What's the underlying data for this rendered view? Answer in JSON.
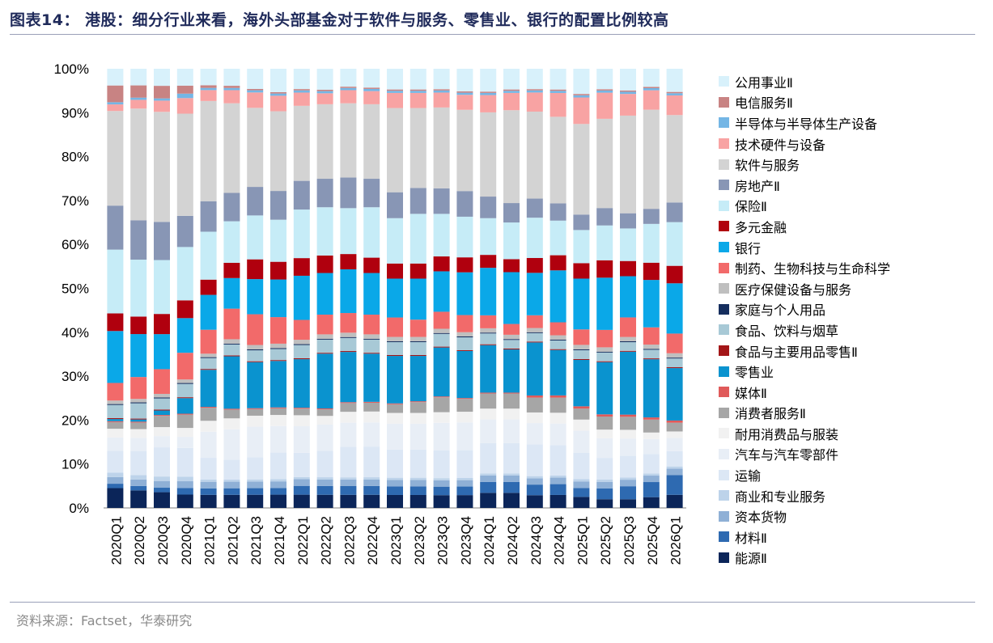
{
  "title": "图表14：  港股：细分行业来看，海外头部基金对于软件与服务、零售业、银行的配置比例较高",
  "source": "资料来源：Factset，华泰研究",
  "chart_data": {
    "type": "bar",
    "stacked": true,
    "ylim": [
      0,
      100
    ],
    "yticks": [
      "0%",
      "10%",
      "20%",
      "30%",
      "40%",
      "50%",
      "60%",
      "70%",
      "80%",
      "90%",
      "100%"
    ],
    "categories": [
      "2020Q1",
      "2020Q2",
      "2020Q3",
      "2020Q4",
      "2021Q1",
      "2021Q2",
      "2021Q3",
      "2021Q4",
      "2022Q1",
      "2022Q2",
      "2022Q3",
      "2022Q4",
      "2023Q1",
      "2023Q2",
      "2023Q3",
      "2023Q4",
      "2024Q1",
      "2024Q2",
      "2024Q3",
      "2024Q4",
      "2025Q1",
      "2025Q2",
      "2025Q3",
      "2025Q4",
      "2026Q1"
    ],
    "legend_position": "right",
    "series": [
      {
        "name": "能源Ⅱ",
        "color": "#0b2559",
        "values": [
          4.5,
          4.0,
          3.5,
          3.0,
          3.0,
          3.0,
          3.0,
          3.0,
          3.0,
          3.0,
          3.0,
          3.0,
          3.0,
          3.0,
          3.0,
          3.0,
          3.5,
          3.5,
          3.0,
          3.0,
          2.5,
          2.0,
          2.0,
          2.5,
          3.0
        ]
      },
      {
        "name": "材料Ⅱ",
        "color": "#2e6ab1",
        "values": [
          1.0,
          1.0,
          1.0,
          1.5,
          1.5,
          1.5,
          1.5,
          1.5,
          2.0,
          2.0,
          2.0,
          2.0,
          2.0,
          2.0,
          2.0,
          2.0,
          2.5,
          2.5,
          2.5,
          2.5,
          2.0,
          2.5,
          3.0,
          3.5,
          4.5
        ]
      },
      {
        "name": "资本货物",
        "color": "#8fb0d6",
        "values": [
          1.5,
          1.5,
          1.5,
          1.5,
          1.5,
          1.5,
          1.5,
          1.5,
          1.5,
          1.5,
          1.5,
          1.5,
          1.5,
          1.5,
          1.5,
          1.5,
          1.5,
          1.5,
          1.5,
          1.5,
          1.5,
          1.5,
          1.5,
          1.5,
          1.5
        ]
      },
      {
        "name": "商业和专业服务",
        "color": "#bdd3ea",
        "values": [
          1.0,
          1.0,
          1.0,
          1.0,
          0.5,
          0.5,
          0.5,
          0.5,
          0.5,
          0.5,
          0.5,
          0.5,
          0.5,
          0.5,
          0.5,
          0.5,
          0.5,
          0.5,
          0.5,
          0.5,
          0.5,
          0.5,
          0.5,
          0.5,
          0.5
        ]
      },
      {
        "name": "运输",
        "color": "#dce7f5",
        "values": [
          5.0,
          5.5,
          6.5,
          6.5,
          5.0,
          4.5,
          5.0,
          6.0,
          5.5,
          6.0,
          7.0,
          7.0,
          6.5,
          6.5,
          6.5,
          6.5,
          7.0,
          7.0,
          7.5,
          7.0,
          6.0,
          5.0,
          5.0,
          4.5,
          3.5
        ]
      },
      {
        "name": "汽车与汽车零部件",
        "color": "#e8eef6",
        "values": [
          3.0,
          3.0,
          2.5,
          2.5,
          6.0,
          7.0,
          7.0,
          6.0,
          6.0,
          6.0,
          5.5,
          5.5,
          6.0,
          6.0,
          6.5,
          6.5,
          5.5,
          5.5,
          5.0,
          5.0,
          5.0,
          4.5,
          4.0,
          3.5,
          3.0
        ]
      },
      {
        "name": "耐用消费品与服装",
        "color": "#f1f1f1",
        "values": [
          2.0,
          2.0,
          2.0,
          2.0,
          2.5,
          2.5,
          2.5,
          2.5,
          2.5,
          2.0,
          2.5,
          2.5,
          2.5,
          2.5,
          2.5,
          2.5,
          2.5,
          2.5,
          2.5,
          2.5,
          2.5,
          2.0,
          2.0,
          1.5,
          1.5
        ]
      },
      {
        "name": "消费者服务Ⅱ",
        "color": "#a6a6a6",
        "values": [
          1.5,
          1.5,
          2.5,
          3.0,
          3.0,
          2.0,
          1.5,
          1.5,
          1.5,
          1.5,
          2.0,
          2.0,
          2.0,
          2.5,
          3.5,
          3.0,
          3.5,
          3.5,
          3.5,
          3.5,
          2.5,
          3.0,
          3.0,
          3.0,
          2.0
        ]
      },
      {
        "name": "媒体Ⅱ",
        "color": "#e05a5a",
        "values": [
          0.2,
          0.2,
          0.2,
          0.2,
          0.2,
          0.2,
          0.2,
          0.2,
          0.2,
          0.2,
          0.2,
          0.2,
          0.2,
          0.2,
          0.2,
          0.2,
          0.2,
          0.2,
          0.5,
          0.5,
          0.5,
          0.5,
          0.5,
          0.5,
          0.5
        ]
      },
      {
        "name": "零售业",
        "color": "#0a93cf",
        "values": [
          0.5,
          0.5,
          1.0,
          3.5,
          8.5,
          12.0,
          10.5,
          10.5,
          11.0,
          12.5,
          11.5,
          11.0,
          11.0,
          10.5,
          11.5,
          11.0,
          11.0,
          10.0,
          12.5,
          10.5,
          10.5,
          12.0,
          14.5,
          13.5,
          12.0
        ]
      },
      {
        "name": "食品与主要用品零售Ⅱ",
        "color": "#a31618",
        "values": [
          0.2,
          0.2,
          0.2,
          0.2,
          0.2,
          0.2,
          0.2,
          0.2,
          0.2,
          0.2,
          0.2,
          0.2,
          0.2,
          0.2,
          0.2,
          0.2,
          0.2,
          0.2,
          0.2,
          0.2,
          0.2,
          0.2,
          0.2,
          0.2,
          0.2
        ]
      },
      {
        "name": "食品、饮料与烟草",
        "color": "#a8c9d6",
        "values": [
          3.0,
          3.5,
          2.5,
          3.0,
          2.5,
          2.5,
          2.5,
          2.5,
          3.0,
          3.0,
          3.0,
          3.0,
          3.0,
          3.0,
          3.0,
          3.0,
          2.5,
          2.0,
          2.0,
          2.0,
          2.0,
          2.0,
          2.0,
          2.0,
          2.0
        ]
      },
      {
        "name": "家庭与个人用品",
        "color": "#152e5e",
        "values": [
          0.2,
          0.2,
          0.2,
          0.2,
          0.2,
          0.2,
          0.2,
          0.2,
          0.2,
          0.2,
          0.2,
          0.2,
          0.2,
          0.2,
          0.2,
          0.2,
          0.2,
          0.2,
          0.2,
          0.2,
          0.2,
          0.2,
          0.2,
          0.2,
          0.2
        ]
      },
      {
        "name": "医疗保健设备与服务",
        "color": "#bfbfbf",
        "values": [
          0.8,
          0.8,
          0.8,
          0.8,
          0.8,
          1.0,
          1.0,
          1.0,
          1.0,
          1.0,
          1.0,
          1.0,
          1.0,
          1.0,
          1.0,
          1.0,
          1.0,
          1.0,
          1.0,
          1.0,
          1.0,
          1.0,
          1.0,
          1.0,
          1.0
        ]
      },
      {
        "name": "制药、生物科技与生命科学",
        "color": "#f26a6a",
        "values": [
          4.0,
          5.0,
          5.5,
          6.0,
          5.5,
          7.0,
          7.0,
          6.0,
          4.5,
          4.5,
          4.5,
          4.5,
          4.5,
          4.0,
          4.0,
          4.0,
          3.0,
          2.5,
          3.0,
          3.0,
          3.5,
          4.0,
          4.5,
          4.0,
          4.5
        ]
      },
      {
        "name": "银行",
        "color": "#0aa8e8",
        "values": [
          11.8,
          9.8,
          7.8,
          7.8,
          8.0,
          7.0,
          8.0,
          8.5,
          10.0,
          9.5,
          10.0,
          9.5,
          9.0,
          9.5,
          9.5,
          10.0,
          11.0,
          12.0,
          10.0,
          12.0,
          11.5,
          12.0,
          9.5,
          11.0,
          11.5
        ]
      },
      {
        "name": "多元金融",
        "color": "#b0000e",
        "values": [
          4.0,
          4.0,
          4.5,
          4.0,
          3.5,
          3.5,
          4.5,
          4.0,
          4.0,
          4.0,
          3.5,
          3.5,
          3.5,
          3.5,
          3.5,
          3.5,
          3.0,
          3.0,
          3.5,
          3.5,
          3.5,
          4.0,
          3.5,
          4.0,
          4.0
        ]
      },
      {
        "name": "保险Ⅱ",
        "color": "#c6ecf7",
        "values": [
          14.5,
          13.0,
          12.0,
          12.0,
          11.0,
          9.5,
          10.0,
          9.5,
          11.0,
          11.0,
          10.5,
          11.5,
          10.5,
          11.5,
          10.0,
          9.5,
          8.5,
          8.5,
          9.5,
          8.0,
          7.5,
          8.0,
          7.5,
          9.0,
          10.0
        ]
      },
      {
        "name": "房地产Ⅱ",
        "color": "#8896b5",
        "values": [
          10.0,
          9.0,
          8.5,
          7.0,
          7.0,
          6.5,
          6.5,
          6.5,
          6.5,
          6.5,
          7.0,
          6.5,
          6.0,
          6.0,
          6.0,
          6.0,
          5.0,
          4.5,
          4.5,
          4.0,
          3.5,
          4.0,
          3.5,
          3.5,
          4.5
        ]
      },
      {
        "name": "软件与服务",
        "color": "#d3d3d3",
        "values": [
          21.5,
          25.5,
          24.5,
          23.0,
          23.0,
          20.5,
          18.0,
          18.0,
          17.0,
          17.0,
          17.0,
          17.0,
          19.5,
          18.5,
          19.0,
          19.0,
          19.5,
          21.5,
          20.5,
          20.0,
          20.5,
          20.5,
          22.5,
          23.0,
          20.0
        ]
      },
      {
        "name": "技术硬件与设备",
        "color": "#f8a3a3",
        "values": [
          1.5,
          2.0,
          2.5,
          3.5,
          2.5,
          3.0,
          3.5,
          3.5,
          3.0,
          2.5,
          3.0,
          3.0,
          3.5,
          3.5,
          3.5,
          3.5,
          4.0,
          4.0,
          4.5,
          5.5,
          6.0,
          6.0,
          5.0,
          4.5,
          4.5
        ]
      },
      {
        "name": "半导体与半导体生产设备",
        "color": "#74b6e5",
        "values": [
          0.5,
          0.5,
          0.5,
          1.0,
          0.5,
          0.5,
          0.5,
          0.5,
          0.5,
          0.5,
          0.5,
          0.5,
          0.5,
          0.5,
          0.5,
          0.5,
          0.5,
          0.5,
          0.5,
          0.5,
          0.5,
          0.5,
          0.5,
          0.5,
          0.5
        ]
      },
      {
        "name": "电信服务Ⅱ",
        "color": "#c88383",
        "values": [
          3.8,
          2.8,
          2.8,
          1.8,
          0.6,
          0.5,
          0.3,
          0.3,
          0.3,
          0.3,
          0.3,
          0.3,
          0.3,
          0.3,
          0.3,
          0.3,
          0.3,
          0.3,
          0.3,
          0.3,
          0.3,
          0.3,
          0.3,
          0.3,
          0.3
        ]
      },
      {
        "name": "公用事业Ⅱ",
        "color": "#d8f1fb",
        "values": [
          3.8,
          3.8,
          3.8,
          3.8,
          3.8,
          3.9,
          4.6,
          5.3,
          4.6,
          4.8,
          4.1,
          4.3,
          4.8,
          4.8,
          4.8,
          5.3,
          5.3,
          4.8,
          4.8,
          4.8,
          5.7,
          4.7,
          5.0,
          4.2,
          5.3
        ]
      }
    ]
  }
}
